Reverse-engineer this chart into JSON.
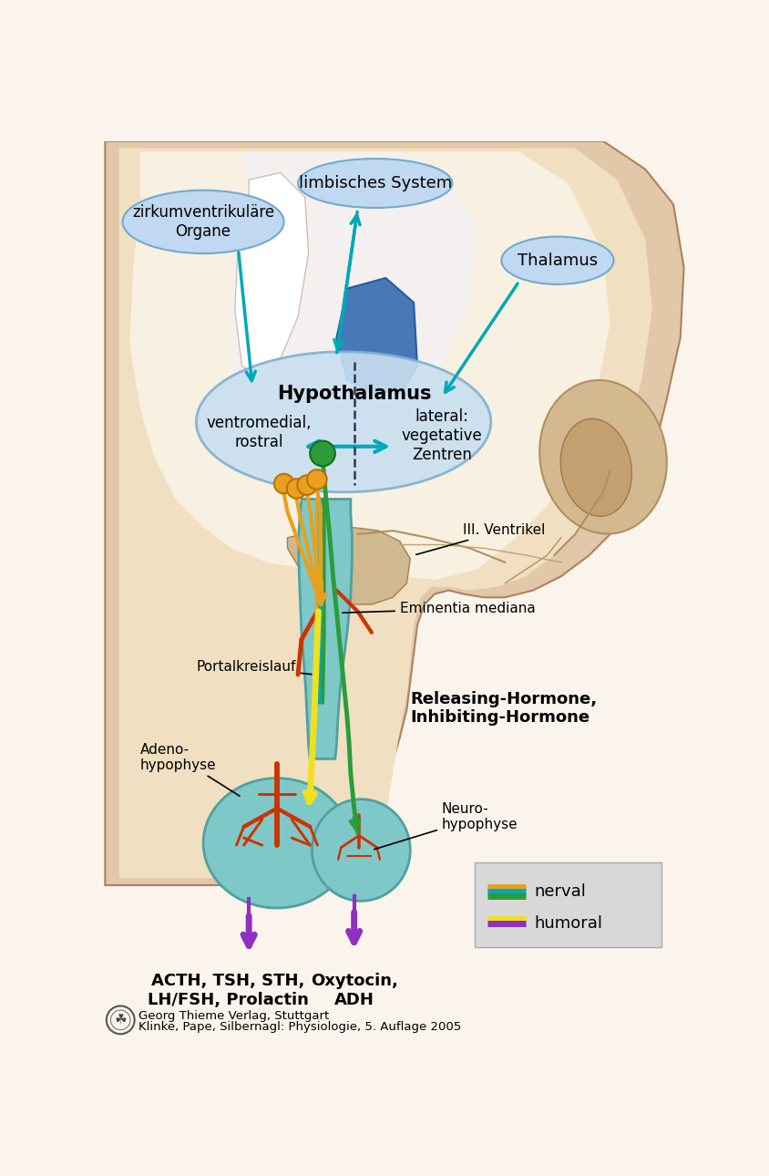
{
  "bg_color": "#faf4ec",
  "arrow_color": "#00a8b8",
  "orange_color": "#e8a020",
  "green_color": "#2a9d3a",
  "yellow_color": "#f0e020",
  "purple_color": "#9030c0",
  "red_color": "#cc3300",
  "teal_bg": "#7ec8c8",
  "teal_dark": "#50a0a0",
  "ellipse_color": "#c0d8f0",
  "ellipse_edge": "#70aad0",
  "hypo_color": "#c4ddf0",
  "hypo_edge": "#80b0d0",
  "brain_outer": "#e0c8a8",
  "brain_inner": "#f0dfc0",
  "brain_light": "#f8f0e0",
  "brain_brown": "#c8a070",
  "blue_region": "#5080c0",
  "labels": {
    "zirkum": "zirkumventrikuläre\nOrgane",
    "limbisch": "limbisches System",
    "thalamus": "Thalamus",
    "hypothalamus": "Hypothalamus",
    "ventromedial": "ventromedial,\nrostral",
    "lateral": "lateral:\nvegetative\nZentren",
    "ventrikel": "III. Ventrikel",
    "portalkreislauf": "Portalkreislauf",
    "eminentia": "Eminentia mediana",
    "adeno": "Adeno-\nhypophyse",
    "releasing": "Releasing-Hormone,\nInhibiting-Hormone",
    "neuro": "Neuro-\nhypophyse",
    "acth": "ACTH, TSH, STH,\nLH/FSH, Prolactin",
    "oxytocin": "Oxytocin,\nADH",
    "nerval": "nerval",
    "humoral": "humoral",
    "publisher": "Georg Thieme Verlag, Stuttgart",
    "book": "Klinke, Pape, Silbernagl: Physiologie, 5. Auflage 2005"
  }
}
